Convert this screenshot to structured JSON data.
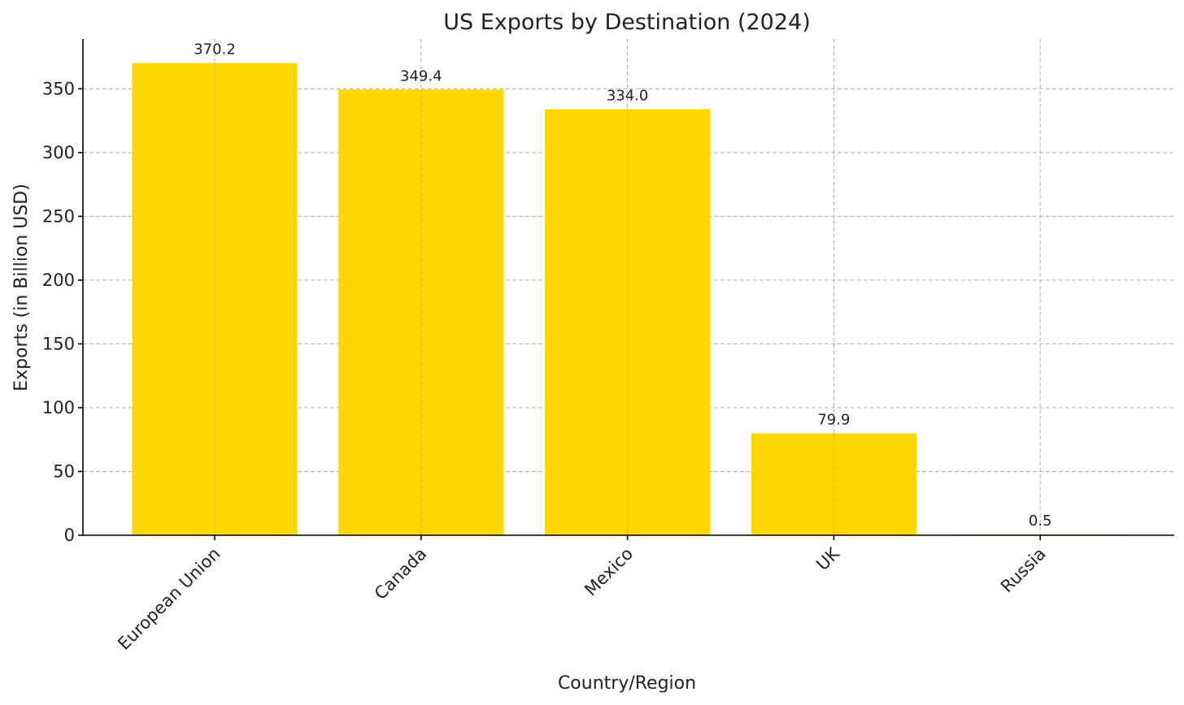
{
  "chart_data": {
    "type": "bar",
    "title": "US Exports by Destination (2024)",
    "xlabel": "Country/Region",
    "ylabel": "Exports (in Billion USD)",
    "categories": [
      "European Union",
      "Canada",
      "Mexico",
      "UK",
      "Russia"
    ],
    "values": [
      370.2,
      349.4,
      334.0,
      79.9,
      0.5
    ],
    "value_labels": [
      "370.2",
      "349.4",
      "334.0",
      "79.9",
      "0.5"
    ],
    "ylim": [
      0,
      388
    ],
    "yticks": [
      0,
      50,
      100,
      150,
      200,
      250,
      300,
      350
    ],
    "bar_color": "#FFD700",
    "grid": true,
    "xtick_rotation_deg": 45
  }
}
